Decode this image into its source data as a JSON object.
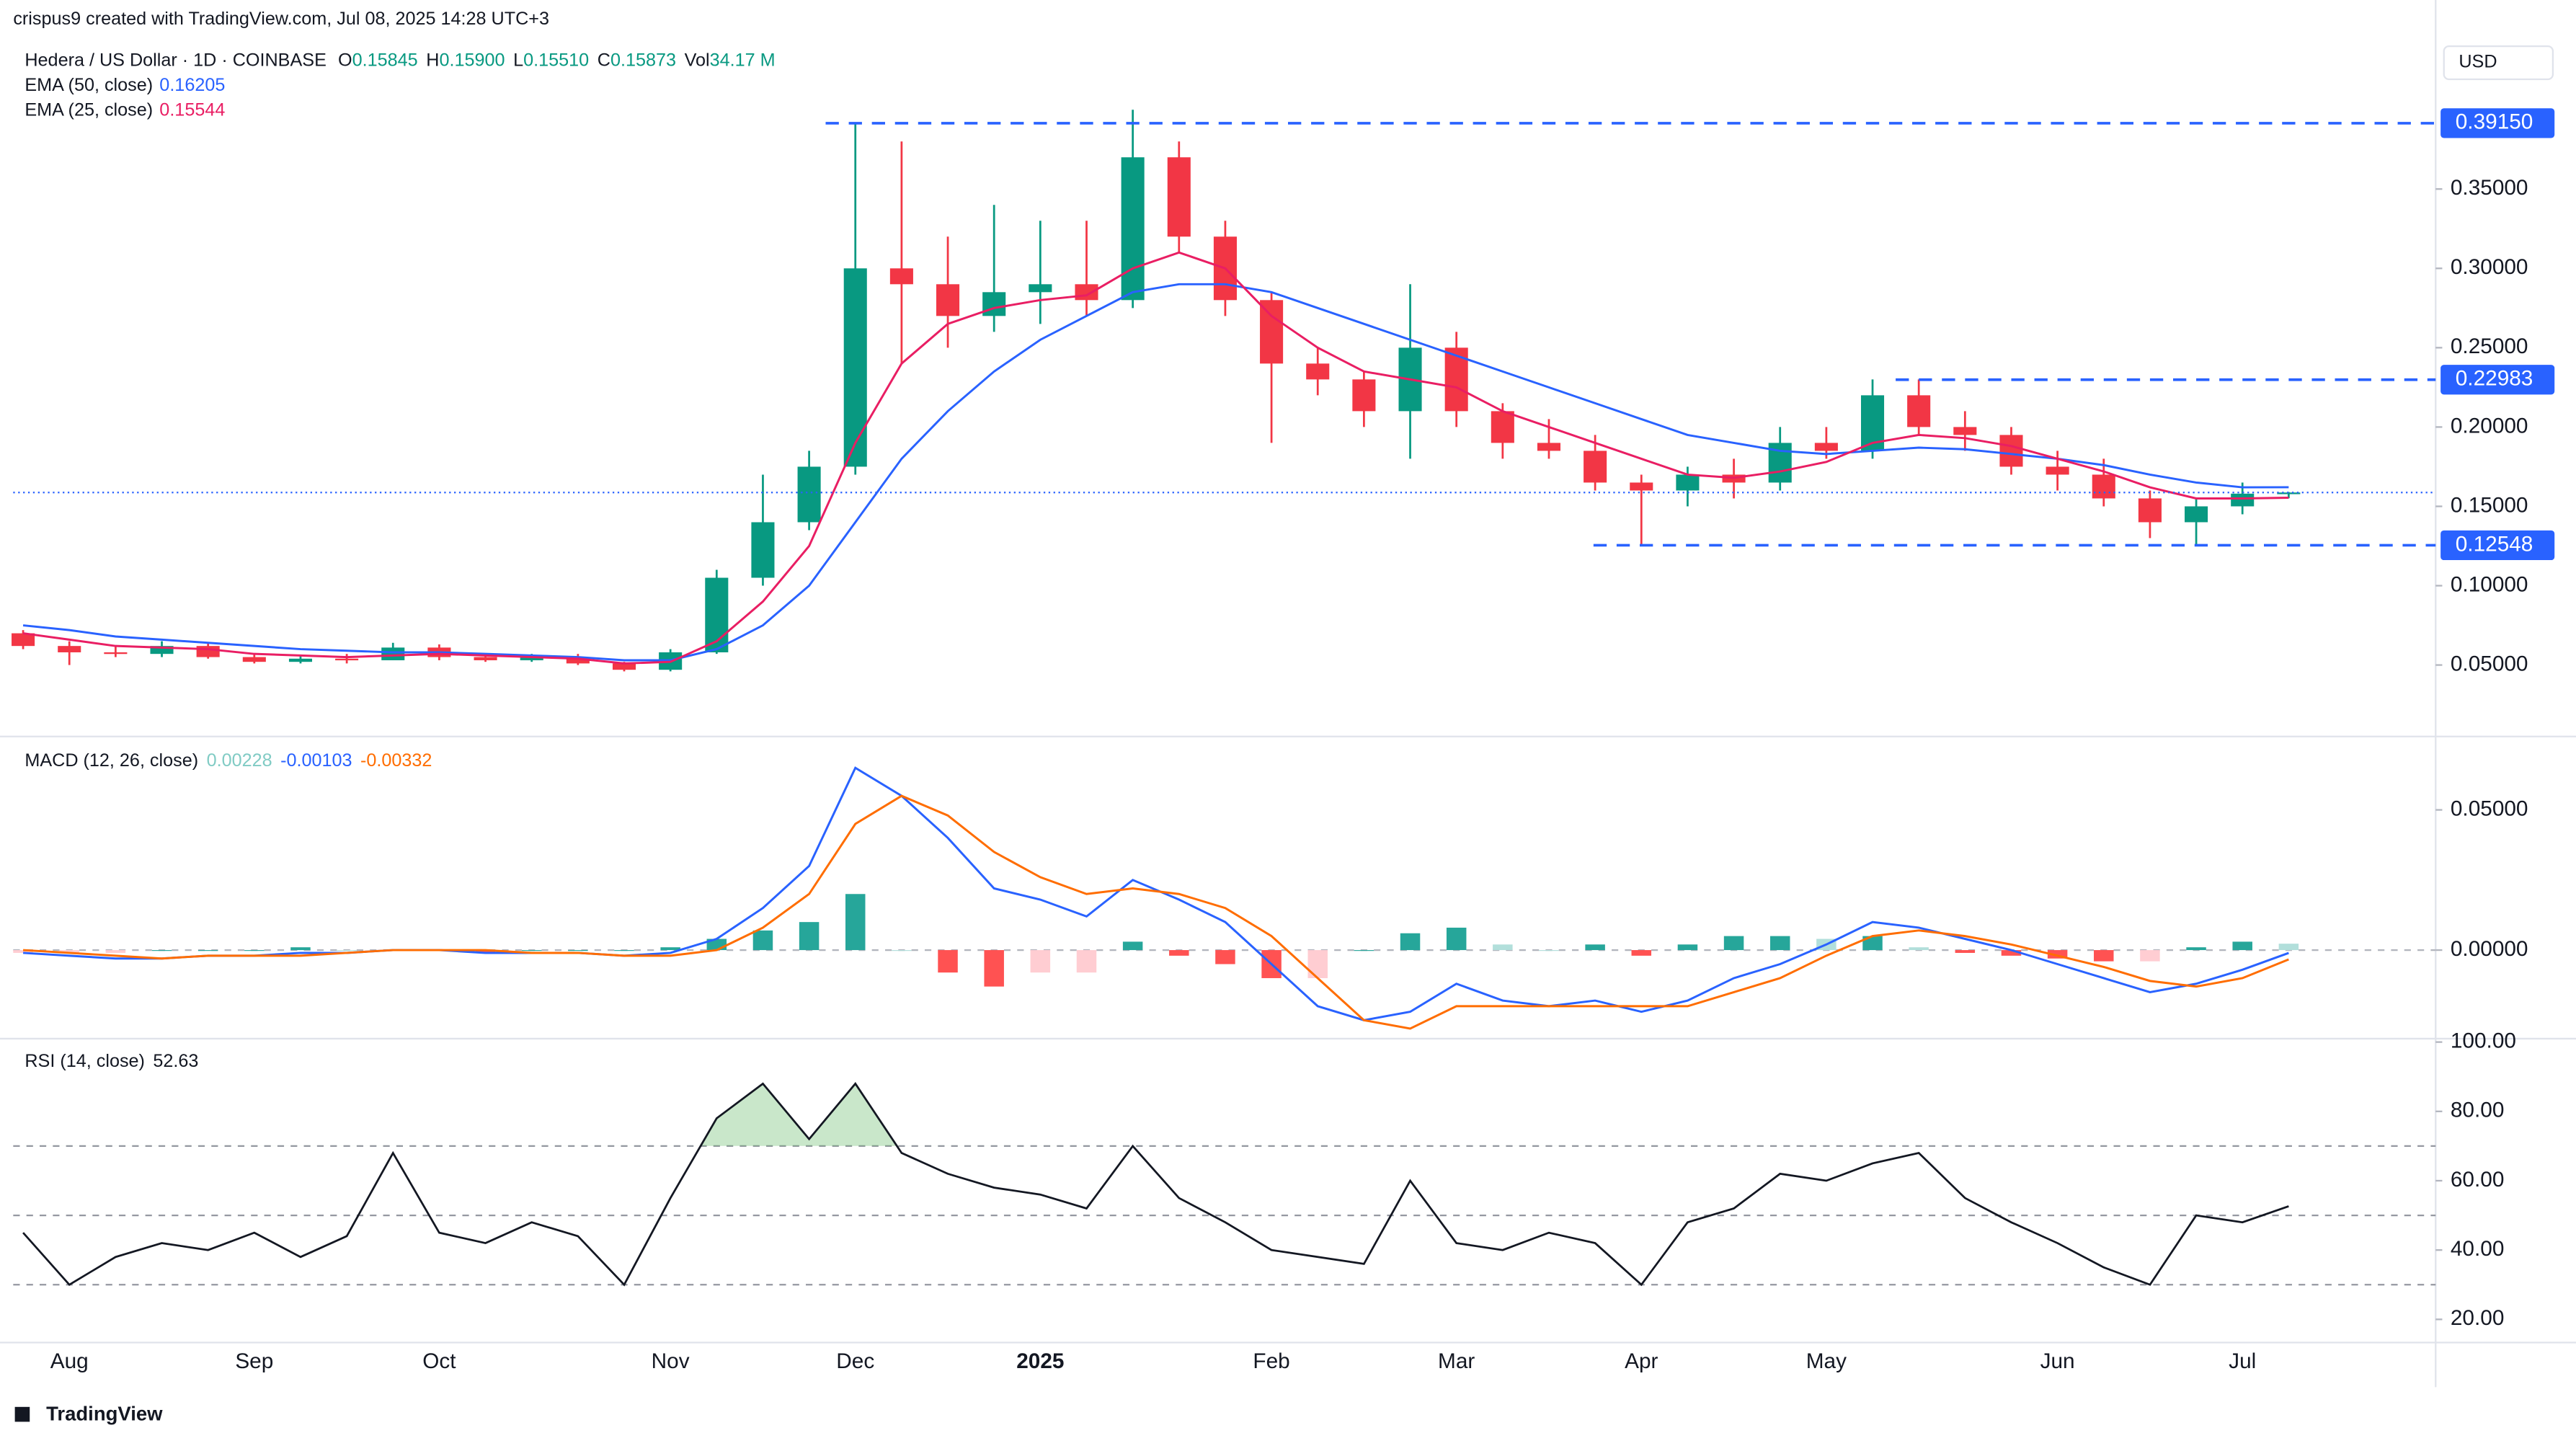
{
  "header": {
    "credit": "crispus9 created with TradingView.com, Jul 08, 2025 14:28 UTC+3",
    "currency": "USD",
    "footer": "TradingView"
  },
  "chart_data": [
    {
      "type": "candlestick",
      "title": "Hedera / US Dollar · 1D · COINBASE",
      "ohlc": [
        {
          "key": "O",
          "value": "0.15845"
        },
        {
          "key": "H",
          "value": "0.15900"
        },
        {
          "key": "L",
          "value": "0.15510"
        },
        {
          "key": "C",
          "value": "0.15873"
        },
        {
          "key": "Vol",
          "value": "34.17 M"
        }
      ],
      "categories": [
        null,
        "Aug",
        null,
        null,
        null,
        "Sep",
        null,
        null,
        null,
        "Oct",
        null,
        null,
        null,
        null,
        "Nov",
        null,
        null,
        null,
        "Dec",
        null,
        null,
        null,
        "2025",
        null,
        null,
        null,
        null,
        "Feb",
        null,
        null,
        null,
        "Mar",
        null,
        null,
        null,
        "Apr",
        null,
        null,
        null,
        "May",
        null,
        null,
        null,
        null,
        "Jun",
        null,
        null,
        null,
        "Jul",
        null
      ],
      "open": [
        0.07,
        0.062,
        0.058,
        0.057,
        0.062,
        0.055,
        0.052,
        0.054,
        0.053,
        0.061,
        0.055,
        0.053,
        0.055,
        0.051,
        0.047,
        0.058,
        0.105,
        0.14,
        0.175,
        0.3,
        0.29,
        0.27,
        0.285,
        0.29,
        0.28,
        0.37,
        0.32,
        0.28,
        0.24,
        0.23,
        0.21,
        0.25,
        0.21,
        0.19,
        0.185,
        0.165,
        0.16,
        0.17,
        0.165,
        0.19,
        0.185,
        0.22,
        0.2,
        0.195,
        0.175,
        0.17,
        0.155,
        0.14,
        0.15,
        0.15845
      ],
      "high": [
        0.072,
        0.065,
        0.062,
        0.065,
        0.064,
        0.057,
        0.056,
        0.057,
        0.064,
        0.063,
        0.057,
        0.057,
        0.057,
        0.052,
        0.06,
        0.11,
        0.17,
        0.185,
        0.391,
        0.38,
        0.32,
        0.34,
        0.33,
        0.33,
        0.4,
        0.38,
        0.33,
        0.285,
        0.25,
        0.235,
        0.29,
        0.26,
        0.215,
        0.205,
        0.195,
        0.17,
        0.175,
        0.18,
        0.2,
        0.2,
        0.23,
        0.23,
        0.21,
        0.2,
        0.185,
        0.18,
        0.16,
        0.155,
        0.165,
        0.159
      ],
      "low": [
        0.06,
        0.05,
        0.055,
        0.055,
        0.054,
        0.051,
        0.051,
        0.051,
        0.053,
        0.053,
        0.052,
        0.052,
        0.05,
        0.046,
        0.046,
        0.057,
        0.1,
        0.135,
        0.17,
        0.24,
        0.25,
        0.26,
        0.265,
        0.27,
        0.275,
        0.31,
        0.27,
        0.19,
        0.22,
        0.2,
        0.18,
        0.2,
        0.18,
        0.18,
        0.16,
        0.125,
        0.15,
        0.155,
        0.16,
        0.18,
        0.18,
        0.195,
        0.185,
        0.17,
        0.16,
        0.15,
        0.13,
        0.125,
        0.145,
        0.1551
      ],
      "close": [
        0.062,
        0.058,
        0.057,
        0.062,
        0.055,
        0.052,
        0.054,
        0.053,
        0.061,
        0.055,
        0.053,
        0.055,
        0.051,
        0.047,
        0.058,
        0.105,
        0.14,
        0.175,
        0.3,
        0.29,
        0.27,
        0.285,
        0.29,
        0.28,
        0.37,
        0.32,
        0.28,
        0.24,
        0.23,
        0.21,
        0.25,
        0.21,
        0.19,
        0.185,
        0.165,
        0.16,
        0.17,
        0.165,
        0.19,
        0.185,
        0.22,
        0.2,
        0.195,
        0.175,
        0.17,
        0.155,
        0.14,
        0.15,
        0.158,
        0.15873
      ],
      "up_color": "#089981",
      "down_color": "#f23645",
      "series": [
        {
          "name": "EMA (50, close)",
          "color": "#2962ff",
          "values": [
            0.075,
            0.072,
            0.068,
            0.066,
            0.064,
            0.062,
            0.06,
            0.059,
            0.058,
            0.058,
            0.057,
            0.056,
            0.055,
            0.053,
            0.053,
            0.06,
            0.075,
            0.1,
            0.14,
            0.18,
            0.21,
            0.235,
            0.255,
            0.27,
            0.285,
            0.29,
            0.29,
            0.285,
            0.275,
            0.265,
            0.255,
            0.245,
            0.235,
            0.225,
            0.215,
            0.205,
            0.195,
            0.19,
            0.185,
            0.183,
            0.185,
            0.187,
            0.186,
            0.183,
            0.18,
            0.176,
            0.17,
            0.165,
            0.162,
            0.16205
          ]
        },
        {
          "name": "EMA (25, close)",
          "color": "#e91e63",
          "values": [
            0.07,
            0.066,
            0.062,
            0.061,
            0.06,
            0.057,
            0.056,
            0.055,
            0.056,
            0.057,
            0.056,
            0.055,
            0.054,
            0.051,
            0.052,
            0.065,
            0.09,
            0.125,
            0.19,
            0.24,
            0.265,
            0.275,
            0.28,
            0.283,
            0.3,
            0.31,
            0.3,
            0.27,
            0.25,
            0.235,
            0.23,
            0.225,
            0.21,
            0.2,
            0.19,
            0.18,
            0.17,
            0.168,
            0.172,
            0.178,
            0.19,
            0.195,
            0.193,
            0.188,
            0.18,
            0.172,
            0.162,
            0.155,
            0.155,
            0.15544
          ]
        }
      ],
      "levels": [
        {
          "value": 0.3915,
          "label": "0.39150"
        },
        {
          "value": 0.22983,
          "label": "0.22983"
        },
        {
          "value": 0.12548,
          "label": "0.12548"
        }
      ],
      "level_color": "#2962ff",
      "price_line": true,
      "ylim": [
        0.006,
        0.44
      ],
      "yticks": [
        {
          "value": 0.05,
          "label": "0.05000"
        },
        {
          "value": 0.1,
          "label": "0.10000"
        },
        {
          "value": 0.15,
          "label": "0.15000"
        },
        {
          "value": 0.2,
          "label": "0.20000"
        },
        {
          "value": 0.25,
          "label": "0.25000"
        },
        {
          "value": 0.3,
          "label": "0.30000"
        },
        {
          "value": 0.35,
          "label": "0.35000"
        }
      ]
    },
    {
      "type": "macd",
      "title": "MACD (12, 26, close)",
      "histogram": {
        "name": "Histogram",
        "colors": [
          "#26a69a",
          "#b2dfdb",
          "#ff5252",
          "#ffcdd2"
        ],
        "values": [
          -0.001,
          -0.001,
          -0.001,
          0,
          0,
          0,
          0.001,
          0,
          0,
          0,
          -0.001,
          0,
          0,
          0,
          0.001,
          0.004,
          0.007,
          0.01,
          0.02,
          0,
          -0.008,
          -0.013,
          -0.008,
          -0.008,
          0.003,
          -0.002,
          -0.005,
          -0.01,
          -0.01,
          0,
          0.006,
          0.008,
          0.002,
          0,
          0.002,
          -0.002,
          0.002,
          0.005,
          0.005,
          0.004,
          0.005,
          0.001,
          -0.001,
          -0.002,
          -0.003,
          -0.004,
          -0.004,
          0.001,
          0.003,
          0.00228
        ]
      },
      "series": [
        {
          "name": "MACD",
          "color": "#2962ff",
          "values": [
            -0.001,
            -0.002,
            -0.003,
            -0.003,
            -0.002,
            -0.002,
            -0.001,
            -0.001,
            0,
            0,
            -0.001,
            -0.001,
            -0.001,
            -0.002,
            -0.001,
            0.004,
            0.015,
            0.03,
            0.065,
            0.055,
            0.04,
            0.022,
            0.018,
            0.012,
            0.025,
            0.018,
            0.01,
            -0.005,
            -0.02,
            -0.025,
            -0.022,
            -0.012,
            -0.018,
            -0.02,
            -0.018,
            -0.022,
            -0.018,
            -0.01,
            -0.005,
            0.002,
            0.01,
            0.008,
            0.004,
            0,
            -0.005,
            -0.01,
            -0.015,
            -0.012,
            -0.007,
            -0.00103
          ]
        },
        {
          "name": "Signal",
          "color": "#ff6d00",
          "values": [
            0,
            -0.001,
            -0.002,
            -0.003,
            -0.002,
            -0.002,
            -0.002,
            -0.001,
            0,
            0,
            0,
            -0.001,
            -0.001,
            -0.002,
            -0.002,
            0,
            0.008,
            0.02,
            0.045,
            0.055,
            0.048,
            0.035,
            0.026,
            0.02,
            0.022,
            0.02,
            0.015,
            0.005,
            -0.01,
            -0.025,
            -0.028,
            -0.02,
            -0.02,
            -0.02,
            -0.02,
            -0.02,
            -0.02,
            -0.015,
            -0.01,
            -0.002,
            0.005,
            0.007,
            0.005,
            0.002,
            -0.002,
            -0.006,
            -0.011,
            -0.013,
            -0.01,
            -0.00332
          ]
        }
      ],
      "hlines": [
        0
      ],
      "ylim": [
        -0.031,
        0.075
      ],
      "yticks": [
        {
          "value": 0,
          "label": "0.00000"
        },
        {
          "value": 0.05,
          "label": "0.05000"
        }
      ]
    },
    {
      "type": "line",
      "title": "RSI (14, close)",
      "series": [
        {
          "name": "RSI",
          "color": "#131722",
          "values": [
            45,
            30,
            38,
            42,
            40,
            45,
            38,
            44,
            68,
            45,
            42,
            48,
            44,
            30,
            55,
            78,
            88,
            72,
            88,
            68,
            62,
            58,
            56,
            52,
            70,
            55,
            48,
            40,
            38,
            36,
            60,
            42,
            40,
            45,
            42,
            30,
            48,
            52,
            62,
            60,
            65,
            68,
            55,
            48,
            42,
            35,
            30,
            50,
            48,
            52.63
          ]
        }
      ],
      "hlines": [
        70,
        50,
        30
      ],
      "overbought": 70,
      "overbought_color": "#4caf50",
      "ylim": [
        13.8,
        100.5
      ],
      "yticks": [
        {
          "value": 20,
          "label": "20.00"
        },
        {
          "value": 40,
          "label": "40.00"
        },
        {
          "value": 60,
          "label": "60.00"
        },
        {
          "value": 80,
          "label": "80.00"
        },
        {
          "value": 100,
          "label": "100.00"
        }
      ]
    }
  ]
}
